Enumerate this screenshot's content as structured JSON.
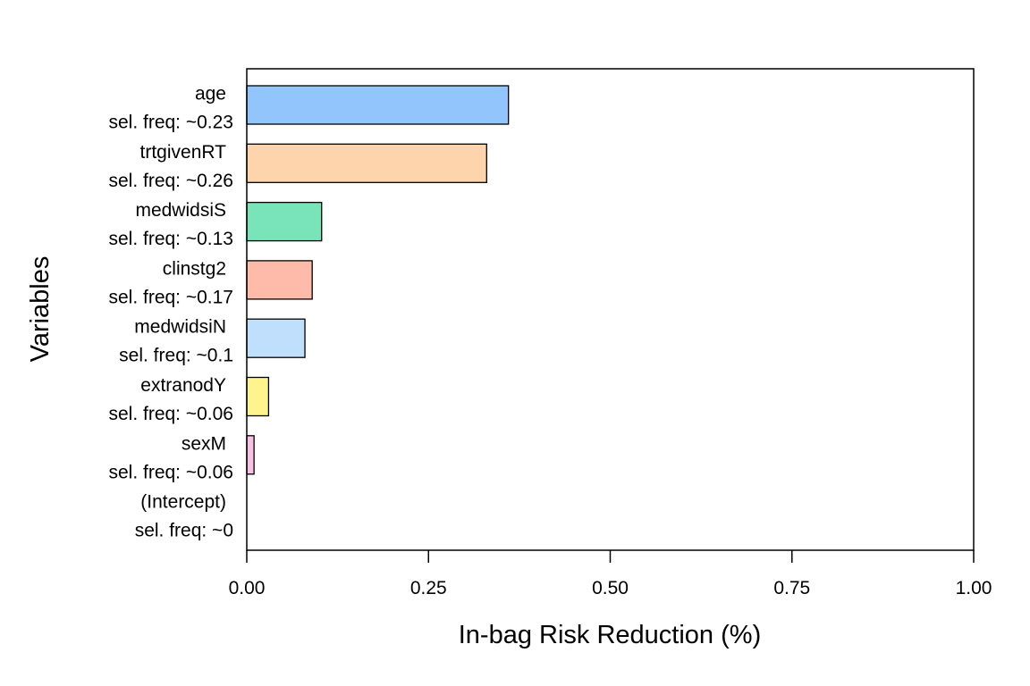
{
  "chart_data": {
    "type": "bar",
    "orientation": "horizontal",
    "xlabel": "In-bag Risk Reduction (%)",
    "ylabel": "Variables",
    "xlim": [
      0,
      1
    ],
    "xticks": [
      "0.00",
      "0.25",
      "0.50",
      "0.75",
      "1.00"
    ],
    "grid": false,
    "categories": [
      {
        "name": "age",
        "freq": "sel. freq: ~0.23",
        "value": 0.36,
        "color": "#93c5fd"
      },
      {
        "name": "trtgivenRT",
        "freq": "sel. freq: ~0.26",
        "value": 0.33,
        "color": "#fed4ac"
      },
      {
        "name": "medwidsiS",
        "freq": "sel. freq: ~0.13",
        "value": 0.103,
        "color": "#79e3ba"
      },
      {
        "name": "clinstg2",
        "freq": "sel. freq: ~0.17",
        "value": 0.09,
        "color": "#febbaa"
      },
      {
        "name": "medwidsiN",
        "freq": "sel. freq: ~0.1",
        "value": 0.08,
        "color": "#bfdffd"
      },
      {
        "name": "extranodY",
        "freq": "sel. freq: ~0.06",
        "value": 0.03,
        "color": "#fef38d"
      },
      {
        "name": "sexM",
        "freq": "sel. freq: ~0.06",
        "value": 0.01,
        "color": "#f8c1e2"
      },
      {
        "name": "(Intercept)",
        "freq": "sel. freq: ~0",
        "value": 0,
        "color": "#ffffff"
      }
    ]
  }
}
